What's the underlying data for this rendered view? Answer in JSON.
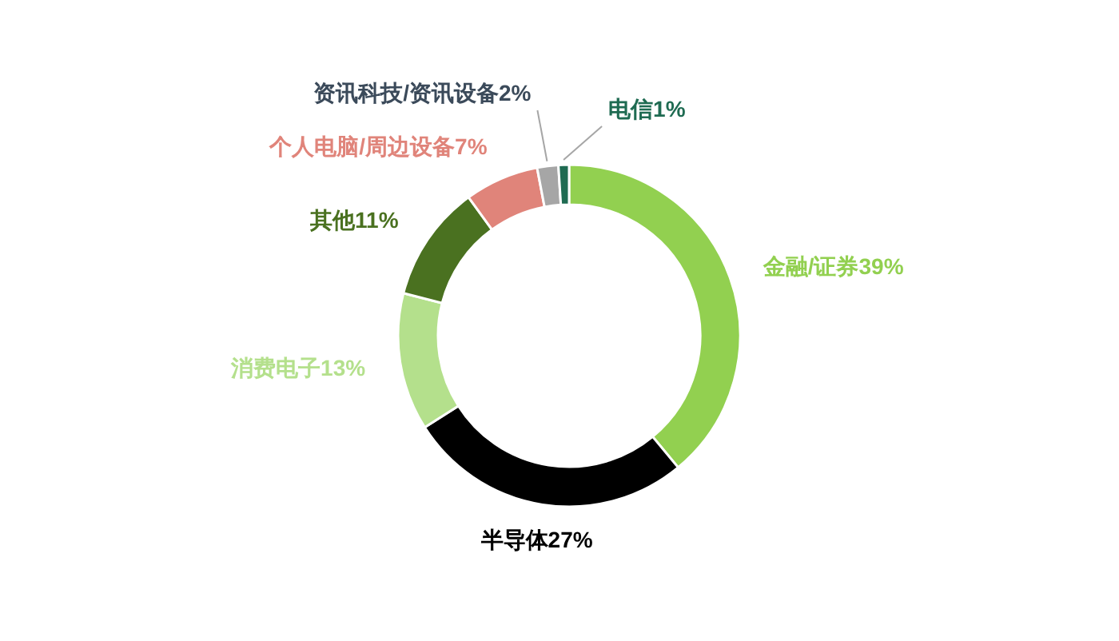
{
  "chart_data": {
    "type": "donut",
    "categories": [
      "金融/证券",
      "半导体",
      "消费电子",
      "其他",
      "个人电脑/周边设备",
      "资讯科技/资讯设备",
      "电信"
    ],
    "values": [
      39,
      27,
      13,
      11,
      7,
      2,
      1
    ],
    "value_labels": [
      "39%",
      "27%",
      "13%",
      "11%",
      "7%",
      "2%",
      "1%"
    ],
    "colors": [
      "#92d050",
      "#000000",
      "#b4e08c",
      "#4a7120",
      "#e0847a",
      "#a6a6a6",
      "#1f6b52"
    ]
  }
}
